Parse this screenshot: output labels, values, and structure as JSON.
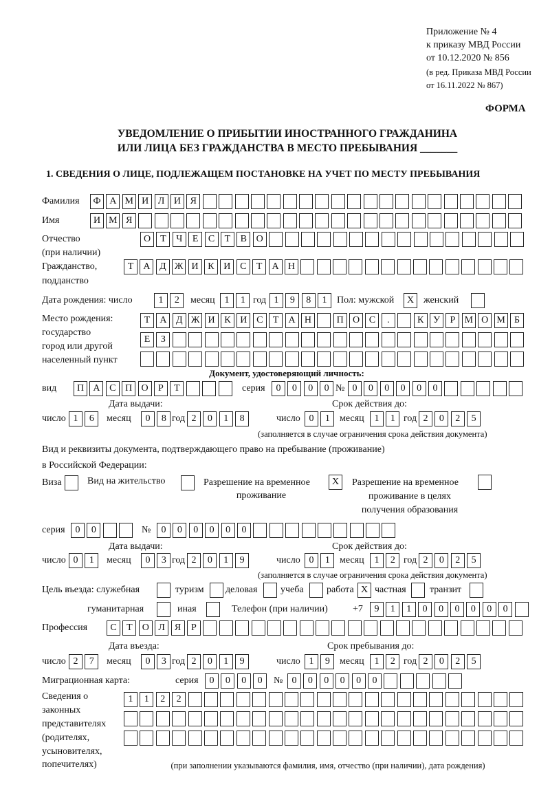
{
  "header": {
    "appendix": "Приложение № 4",
    "order": "к приказу МВД России",
    "order_date": "от 10.12.2020 № 856",
    "revision_1": "(в ред. Приказа МВД России",
    "revision_2": "от 16.11.2022 № 867)",
    "form_label": "ФОРМА",
    "title_1": "УВЕДОМЛЕНИЕ О ПРИБЫТИИ ИНОСТРАННОГО ГРАЖДАНИНА",
    "title_2": "ИЛИ ЛИЦА БЕЗ ГРАЖДАНСТВА В МЕСТО ПРЕБЫВАНИЯ _______",
    "section_1": "1. СВЕДЕНИЯ О ЛИЦЕ, ПОДЛЕЖАЩЕМ ПОСТАНОВКЕ НА УЧЕТ ПО МЕСТУ ПРЕБЫВАНИЯ"
  },
  "labels": {
    "surname": "Фамилия",
    "name": "Имя",
    "patronymic": "Отчество",
    "patronymic_note": "(при наличии)",
    "citizenship_1": "Гражданство,",
    "citizenship_2": "подданство",
    "birth_date": "Дата рождения:   число",
    "day": "число",
    "month": "месяц",
    "year": "год",
    "sex_male": "Пол: мужской",
    "sex_female": "женский",
    "birth_place_1": "Место рождения:",
    "birth_place_2": "государство",
    "birth_place_3": "город или другой",
    "birth_place_4": "населенный пункт",
    "id_doc": "Документ, удостоверяющий личность:",
    "kind": "вид",
    "series": "серия",
    "number": "№",
    "issue_date": "Дата выдачи:",
    "valid_until": "Срок действия до:",
    "validity_note": "(заполняется в случае ограничения срока действия документа)",
    "stay_doc_1": "Вид и реквизиты документа, подтверждающего право на пребывание (проживание)",
    "stay_doc_2": "в Российской Федерации:",
    "visa": "Виза",
    "residence": "Вид на жительство",
    "temp_permit_1": "Разрешение на временное",
    "temp_permit_2": "проживание",
    "edu_permit_1": "Разрешение на временное",
    "edu_permit_2": "проживание в целях",
    "edu_permit_3": "получения образования",
    "purpose": "Цель въезда: служебная",
    "tourism": "туризм",
    "business": "деловая",
    "study": "учеба",
    "work": "работа",
    "private": "частная",
    "transit": "транзит",
    "humanitarian": "гуманитарная",
    "other": "иная",
    "phone": "Телефон (при наличии)",
    "phone_prefix": "+7",
    "profession": "Профессия",
    "entry_date": "Дата въезда:",
    "stay_until": "Срок пребывания до:",
    "migration_card": "Миграционная карта:",
    "reps_1": "Сведения о",
    "reps_2": "законных",
    "reps_3": "представителях",
    "reps_4": "(родителях,",
    "reps_5": "усыновителях,",
    "reps_6": "попечителях)",
    "reps_note": "(при заполнении указываются фамилия, имя, отчество (при наличии), дата рождения)"
  },
  "fields": {
    "surname": [
      "Ф",
      "А",
      "М",
      "И",
      "Л",
      "И",
      "Я",
      "",
      "",
      "",
      "",
      "",
      "",
      "",
      "",
      "",
      "",
      "",
      "",
      "",
      "",
      "",
      "",
      "",
      "",
      "",
      ""
    ],
    "name": [
      "И",
      "М",
      "Я",
      "",
      "",
      "",
      "",
      "",
      "",
      "",
      "",
      "",
      "",
      "",
      "",
      "",
      "",
      "",
      "",
      "",
      "",
      "",
      "",
      "",
      "",
      "",
      ""
    ],
    "patronymic": [
      "О",
      "Т",
      "Ч",
      "Е",
      "С",
      "Т",
      "В",
      "О",
      "",
      "",
      "",
      "",
      "",
      "",
      "",
      "",
      "",
      "",
      "",
      "",
      "",
      "",
      "",
      ""
    ],
    "citizenship": [
      "Т",
      "А",
      "Д",
      "Ж",
      "И",
      "К",
      "И",
      "С",
      "Т",
      "А",
      "Н",
      "",
      "",
      "",
      "",
      "",
      "",
      "",
      "",
      "",
      "",
      "",
      "",
      "",
      ""
    ],
    "birth_day": [
      "1",
      "2"
    ],
    "birth_month": [
      "1",
      "1"
    ],
    "birth_year": [
      "1",
      "9",
      "8",
      "1"
    ],
    "sex_male": [
      "X"
    ],
    "sex_female": [
      ""
    ],
    "birth_place_row1": [
      "Т",
      "А",
      "Д",
      "Ж",
      "И",
      "К",
      "И",
      "С",
      "Т",
      "А",
      "Н",
      "",
      "П",
      "О",
      "С",
      ".",
      "",
      "К",
      "У",
      "Р",
      "М",
      "О",
      "М",
      "Б"
    ],
    "birth_place_row2": [
      "Е",
      "З",
      "",
      "",
      "",
      "",
      "",
      "",
      "",
      "",
      "",
      "",
      "",
      "",
      "",
      "",
      "",
      "",
      "",
      "",
      "",
      "",
      "",
      ""
    ],
    "birth_place_row3": [
      "",
      "",
      "",
      "",
      "",
      "",
      "",
      "",
      "",
      "",
      "",
      "",
      "",
      "",
      "",
      "",
      "",
      "",
      "",
      "",
      "",
      "",
      "",
      ""
    ],
    "id_kind": [
      "П",
      "А",
      "С",
      "П",
      "О",
      "Р",
      "Т",
      "",
      "",
      ""
    ],
    "id_series": [
      "0",
      "0",
      "0",
      "0"
    ],
    "id_number": [
      "0",
      "0",
      "0",
      "0",
      "0",
      "0",
      "",
      "",
      "",
      "",
      ""
    ],
    "id_issue_day": [
      "1",
      "6"
    ],
    "id_issue_month": [
      "0",
      "8"
    ],
    "id_issue_year": [
      "2",
      "0",
      "1",
      "8"
    ],
    "id_valid_day": [
      "0",
      "1"
    ],
    "id_valid_month": [
      "1",
      "1"
    ],
    "id_valid_year": [
      "2",
      "0",
      "2",
      "5"
    ],
    "visa": [
      ""
    ],
    "residence": [
      ""
    ],
    "temp_permit": [
      "X"
    ],
    "edu_permit": [
      ""
    ],
    "stay_series": [
      "0",
      "0",
      "",
      ""
    ],
    "stay_number": [
      "0",
      "0",
      "0",
      "0",
      "0",
      "0",
      "",
      "",
      "",
      "",
      "",
      "",
      "",
      "",
      ""
    ],
    "stay_issue_day": [
      "0",
      "1"
    ],
    "stay_issue_month": [
      "0",
      "3"
    ],
    "stay_issue_year": [
      "2",
      "0",
      "1",
      "9"
    ],
    "stay_valid_day": [
      "0",
      "1"
    ],
    "stay_valid_month": [
      "1",
      "2"
    ],
    "stay_valid_year": [
      "2",
      "0",
      "2",
      "5"
    ],
    "purpose_official": [
      ""
    ],
    "purpose_tourism": [
      ""
    ],
    "purpose_business": [
      ""
    ],
    "purpose_study": [
      ""
    ],
    "purpose_work": [
      "X"
    ],
    "purpose_private": [
      ""
    ],
    "purpose_transit": [
      ""
    ],
    "purpose_humanitarian": [
      ""
    ],
    "purpose_other": [
      ""
    ],
    "phone": [
      "9",
      "1",
      "1",
      "0",
      "0",
      "0",
      "0",
      "0",
      "0",
      ""
    ],
    "profession": [
      "С",
      "Т",
      "О",
      "Л",
      "Я",
      "Р",
      "",
      "",
      "",
      "",
      "",
      "",
      "",
      "",
      "",
      "",
      "",
      "",
      "",
      "",
      "",
      "",
      "",
      "",
      "",
      ""
    ],
    "entry_day": [
      "2",
      "7"
    ],
    "entry_month": [
      "0",
      "3"
    ],
    "entry_year": [
      "2",
      "0",
      "1",
      "9"
    ],
    "stay_until_day": [
      "1",
      "9"
    ],
    "stay_until_month": [
      "1",
      "2"
    ],
    "stay_until_year": [
      "2",
      "0",
      "2",
      "5"
    ],
    "mc_series": [
      "0",
      "0",
      "0",
      "0"
    ],
    "mc_number": [
      "0",
      "0",
      "0",
      "0",
      "0",
      "0",
      "",
      "",
      "",
      "",
      ""
    ],
    "reps_row1": [
      "1",
      "1",
      "2",
      "2",
      "",
      "",
      "",
      "",
      "",
      "",
      "",
      "",
      "",
      "",
      "",
      "",
      "",
      "",
      "",
      "",
      "",
      "",
      "",
      "",
      ""
    ],
    "reps_row2": [
      "",
      "",
      "",
      "",
      "",
      "",
      "",
      "",
      "",
      "",
      "",
      "",
      "",
      "",
      "",
      "",
      "",
      "",
      "",
      "",
      "",
      "",
      "",
      "",
      ""
    ],
    "reps_row3": [
      "",
      "",
      "",
      "",
      "",
      "",
      "",
      "",
      "",
      "",
      "",
      "",
      "",
      "",
      "",
      "",
      "",
      "",
      "",
      "",
      "",
      "",
      "",
      "",
      ""
    ]
  }
}
